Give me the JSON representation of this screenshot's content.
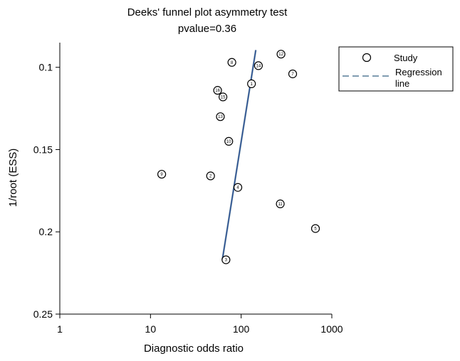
{
  "chart_data": {
    "type": "scatter",
    "title": "Deeks' funnel plot asymmetry test",
    "subtitle": "pvalue=0.36",
    "xlabel": "Diagnostic odds ratio",
    "ylabel": "1/root (ESS)",
    "xscale": "log",
    "xlim": [
      1,
      1000
    ],
    "ylim": [
      0.25,
      0.085
    ],
    "y_inverted": true,
    "xticks": [
      "1",
      "10",
      "100",
      "1000"
    ],
    "yticks": [
      "0.1",
      "0.15",
      "0.2",
      "0.25"
    ],
    "xtick_values": [
      1,
      10,
      100,
      1000
    ],
    "ytick_values": [
      0.1,
      0.15,
      0.2,
      0.25
    ],
    "grid": false,
    "legend": {
      "position": "top-right",
      "entries": [
        {
          "label": "Study",
          "marker": "circle"
        },
        {
          "label_line1": "Regression",
          "label_line2": "line",
          "marker": "dashed-line"
        }
      ]
    },
    "series": [
      {
        "name": "Study",
        "points": [
          {
            "label": "1",
            "x": 130,
            "y": 0.11
          },
          {
            "label": "2",
            "x": 46,
            "y": 0.166
          },
          {
            "label": "3",
            "x": 68,
            "y": 0.217
          },
          {
            "label": "4",
            "x": 92,
            "y": 0.173
          },
          {
            "label": "5",
            "x": 660,
            "y": 0.198
          },
          {
            "label": "7",
            "x": 370,
            "y": 0.104
          },
          {
            "label": "8",
            "x": 79,
            "y": 0.097
          },
          {
            "label": "9",
            "x": 13.3,
            "y": 0.165
          },
          {
            "label": "10",
            "x": 73,
            "y": 0.145
          },
          {
            "label": "11",
            "x": 270,
            "y": 0.183
          },
          {
            "label": "12",
            "x": 275,
            "y": 0.092
          },
          {
            "label": "13",
            "x": 59,
            "y": 0.13
          },
          {
            "label": "14",
            "x": 155,
            "y": 0.099
          },
          {
            "label": "15",
            "x": 63,
            "y": 0.118
          },
          {
            "label": "16",
            "x": 55,
            "y": 0.114
          }
        ]
      },
      {
        "name": "Regression line",
        "type": "line",
        "points": [
          {
            "x": 62,
            "y": 0.217
          },
          {
            "x": 145,
            "y": 0.0895
          }
        ]
      }
    ],
    "colors": {
      "marker_stroke": "#000000",
      "regression_dashed": "#6f8fa6",
      "regression_solid": "#1a3f8f"
    }
  }
}
